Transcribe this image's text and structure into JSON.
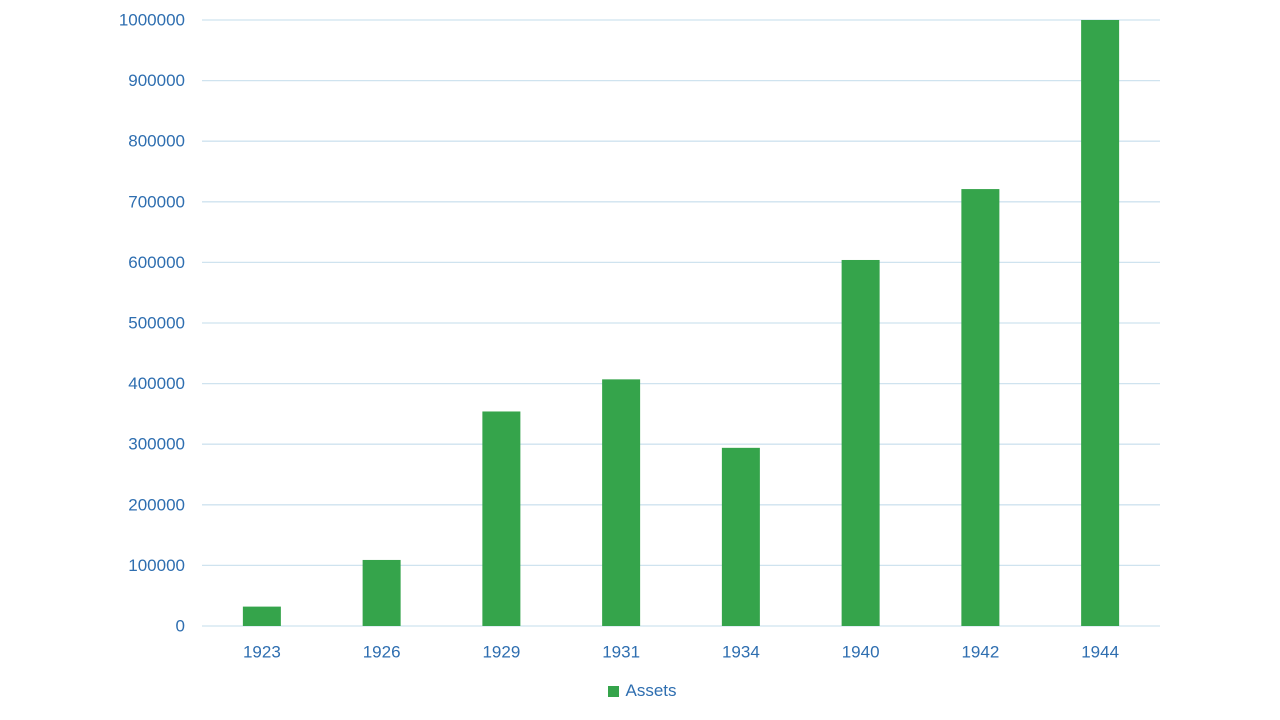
{
  "chart_data": {
    "type": "bar",
    "categories": [
      "1923",
      "1926",
      "1929",
      "1931",
      "1934",
      "1940",
      "1942",
      "1944"
    ],
    "series": [
      {
        "name": "Assets",
        "values": [
          32000,
          109000,
          354000,
          407000,
          294000,
          604000,
          721000,
          1000000
        ]
      }
    ],
    "title": "",
    "xlabel": "",
    "ylabel": "",
    "ylim": [
      0,
      1000000
    ],
    "yticks": [
      0,
      100000,
      200000,
      300000,
      400000,
      500000,
      600000,
      700000,
      800000,
      900000,
      1000000
    ],
    "grid": true,
    "legend_position": "bottom"
  },
  "colors": {
    "bar": "#35a44b",
    "grid": "#cfe3ef",
    "axis_text": "#2e6eb0",
    "background": "#ffffff"
  }
}
